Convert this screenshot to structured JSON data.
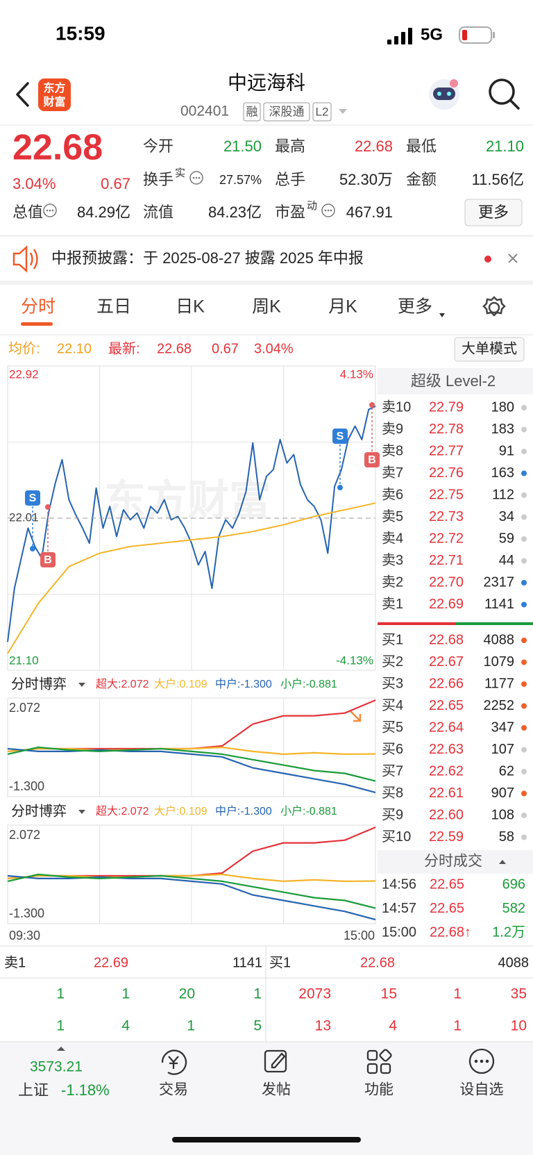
{
  "status": {
    "time": "15:59",
    "network": "5G"
  },
  "header": {
    "logo": [
      "东方",
      "财富"
    ],
    "title": "中远海科",
    "code": "002401",
    "tags": [
      "融",
      "深股通",
      "L2"
    ]
  },
  "quote": {
    "price": "22.68",
    "change_pct": "3.04%",
    "change": "0.67",
    "stats": [
      [
        {
          "label": "今开",
          "value": "21.50",
          "color": "#1a9b3a"
        },
        {
          "label": "最高",
          "value": "22.68",
          "color": "#e4323a"
        },
        {
          "label": "最低",
          "value": "21.10",
          "color": "#1a9b3a"
        }
      ],
      [
        {
          "label": "换手",
          "sup": "实",
          "value": "27.57%"
        },
        {
          "label": "总手",
          "value": "52.30万"
        },
        {
          "label": "金额",
          "value": "11.56亿"
        }
      ],
      [
        {
          "label": "总值",
          "value": "84.29亿"
        },
        {
          "label": "流值",
          "value": "84.23亿"
        },
        {
          "label": "市盈",
          "sup": "动",
          "value": "467.91"
        }
      ]
    ],
    "more": "更多"
  },
  "notice": {
    "text": "中报预披露：于 2025-08-27 披露 2025 年中报"
  },
  "tabs": [
    "分时",
    "五日",
    "日K",
    "周K",
    "月K",
    "更多"
  ],
  "info": {
    "avg_label": "均价:",
    "avg": "22.10",
    "latest_label": "最新:",
    "latest": "22.68",
    "change": "0.67",
    "pct": "3.04%",
    "button": "大单模式"
  },
  "watermark": "东方财富",
  "chart_data": [
    {
      "type": "line",
      "ylim": [
        21.1,
        22.92
      ],
      "yticks": [
        {
          "value": 21.1,
          "label": "21.10"
        },
        22.01,
        22.92
      ],
      "y2lim": [
        -4.13,
        4.13
      ],
      "y2ticks": [
        {
          "value": -4.13,
          "label": "-4.13%"
        },
        {
          "value": 4.13,
          "label": "4.13%"
        }
      ],
      "x_axis_labels": [
        "09:30",
        "15:00"
      ],
      "markers": [
        {
          "label": "S"
        },
        {
          "label": "B"
        },
        {
          "label": "S"
        },
        {
          "label": "B"
        }
      ],
      "series": [
        {
          "color": "#2563b0",
          "values": [
            21.27,
            21.59,
            21.77,
            21.95,
            21.84,
            21.77,
            22.04,
            22.22,
            22.36,
            22.12,
            22.03,
            21.95,
            21.86,
            22.19,
            21.95,
            22.08,
            21.9,
            22.06,
            22.0,
            22.04,
            21.95,
            22.08,
            22.04,
            22.12,
            22.0,
            22.02,
            21.95,
            21.86,
            21.73,
            21.81,
            21.59,
            21.9,
            22.0,
            21.95,
            22.04,
            22.17,
            22.46,
            22.12,
            22.26,
            22.3,
            22.48,
            22.34,
            22.39,
            22.21,
            22.12,
            22.08,
            22.0,
            21.8,
            22.2,
            22.3,
            22.48,
            22.56,
            22.48,
            22.66,
            22.68
          ]
        },
        {
          "color": "#f5b52a",
          "values": [
            21.2,
            21.5,
            21.72,
            21.8,
            21.84,
            21.86,
            21.88,
            21.9,
            21.93,
            21.97,
            22.02,
            22.06,
            22.1
          ]
        }
      ]
    },
    {
      "type": "line",
      "title": "分时博弈",
      "ylim": [
        -1.45,
        2.15
      ],
      "yticks": [
        {
          "value": -1.3,
          "label": "-1.300"
        },
        2.072
      ],
      "series": [
        {
          "name": "超大:2.072",
          "color": "#e4323a",
          "values": [
            0.2,
            0.3,
            0.3,
            0.3,
            0.3,
            0.3,
            0.3,
            0.4,
            1.2,
            1.5,
            1.5,
            1.6,
            2.072
          ]
        },
        {
          "name": "大户:0.109",
          "color": "#f5b52a",
          "values": [
            0.2,
            0.3,
            0.3,
            0.25,
            0.25,
            0.3,
            0.3,
            0.35,
            0.2,
            0.1,
            0.15,
            0.1,
            0.109
          ]
        },
        {
          "name": "中户:-1.300",
          "color": "#2563b0",
          "values": [
            0.3,
            0.2,
            0.2,
            0.25,
            0.2,
            0.2,
            0.1,
            0.0,
            -0.4,
            -0.6,
            -0.8,
            -1.0,
            -1.3
          ]
        },
        {
          "name": "小户:-0.881",
          "color": "#1a9b3a",
          "values": [
            0.1,
            0.35,
            0.25,
            0.2,
            0.25,
            0.3,
            0.2,
            0.1,
            -0.1,
            -0.3,
            -0.5,
            -0.6,
            -0.881
          ]
        }
      ]
    },
    {
      "type": "line",
      "title": "分时博弈",
      "ylim": [
        -1.45,
        2.15
      ],
      "yticks": [
        {
          "value": -1.3,
          "label": "-1.300"
        },
        2.072
      ],
      "series": [
        {
          "name": "超大:2.072",
          "color": "#e4323a",
          "values": [
            0.2,
            0.3,
            0.3,
            0.3,
            0.3,
            0.3,
            0.3,
            0.4,
            1.2,
            1.5,
            1.5,
            1.6,
            2.072
          ]
        },
        {
          "name": "大户:0.109",
          "color": "#f5b52a",
          "values": [
            0.2,
            0.3,
            0.3,
            0.25,
            0.25,
            0.3,
            0.3,
            0.35,
            0.2,
            0.1,
            0.15,
            0.1,
            0.109
          ]
        },
        {
          "name": "中户:-1.300",
          "color": "#2563b0",
          "values": [
            0.3,
            0.2,
            0.2,
            0.25,
            0.2,
            0.2,
            0.1,
            0.0,
            -0.4,
            -0.6,
            -0.8,
            -1.0,
            -1.3
          ]
        },
        {
          "name": "小户:-0.881",
          "color": "#1a9b3a",
          "values": [
            0.1,
            0.35,
            0.25,
            0.2,
            0.25,
            0.3,
            0.2,
            0.1,
            -0.1,
            -0.3,
            -0.5,
            -0.6,
            -0.881
          ]
        }
      ]
    }
  ],
  "order_book": {
    "title": "超级 Level-2",
    "asks": [
      {
        "label": "卖10",
        "price": "22.79",
        "volume": "180"
      },
      {
        "label": "卖9",
        "price": "22.78",
        "volume": "183"
      },
      {
        "label": "卖8",
        "price": "22.77",
        "volume": "91"
      },
      {
        "label": "卖7",
        "price": "22.76",
        "volume": "163"
      },
      {
        "label": "卖6",
        "price": "22.75",
        "volume": "112"
      },
      {
        "label": "卖5",
        "price": "22.73",
        "volume": "34"
      },
      {
        "label": "卖4",
        "price": "22.72",
        "volume": "59"
      },
      {
        "label": "卖3",
        "price": "22.71",
        "volume": "44"
      },
      {
        "label": "卖2",
        "price": "22.70",
        "volume": "2317"
      },
      {
        "label": "卖1",
        "price": "22.69",
        "volume": "1141"
      }
    ],
    "bids": [
      {
        "label": "买1",
        "price": "22.68",
        "volume": "4088"
      },
      {
        "label": "买2",
        "price": "22.67",
        "volume": "1079"
      },
      {
        "label": "买3",
        "price": "22.66",
        "volume": "1177"
      },
      {
        "label": "买4",
        "price": "22.65",
        "volume": "2252"
      },
      {
        "label": "买5",
        "price": "22.64",
        "volume": "347"
      },
      {
        "label": "买6",
        "price": "22.63",
        "volume": "107"
      },
      {
        "label": "买7",
        "price": "22.62",
        "volume": "62"
      },
      {
        "label": "买8",
        "price": "22.61",
        "volume": "907"
      },
      {
        "label": "买9",
        "price": "22.60",
        "volume": "108"
      },
      {
        "label": "买10",
        "price": "22.59",
        "volume": "58"
      }
    ]
  },
  "trades": {
    "title": "分时成交",
    "rows": [
      {
        "time": "14:56",
        "price": "22.65",
        "volume": "696"
      },
      {
        "time": "14:57",
        "price": "22.65",
        "volume": "582"
      },
      {
        "time": "15:00",
        "price": "22.68↑",
        "volume": "1.2万"
      }
    ]
  },
  "queue": {
    "ask": {
      "label": "卖1",
      "price": "22.69",
      "volume": "1141",
      "rows": [
        [
          "1",
          "1",
          "20",
          "1"
        ],
        [
          "1",
          "4",
          "1",
          "5"
        ]
      ]
    },
    "bid": {
      "label": "买1",
      "price": "22.68",
      "volume": "4088",
      "rows": [
        [
          "2073",
          "15",
          "1",
          "35"
        ],
        [
          "13",
          "4",
          "1",
          "10"
        ]
      ]
    }
  },
  "tabbar": {
    "index_value": "3573.21",
    "index_name": "上证",
    "index_pct": "-1.18%",
    "items": [
      "交易",
      "发帖",
      "功能",
      "设自选"
    ]
  }
}
